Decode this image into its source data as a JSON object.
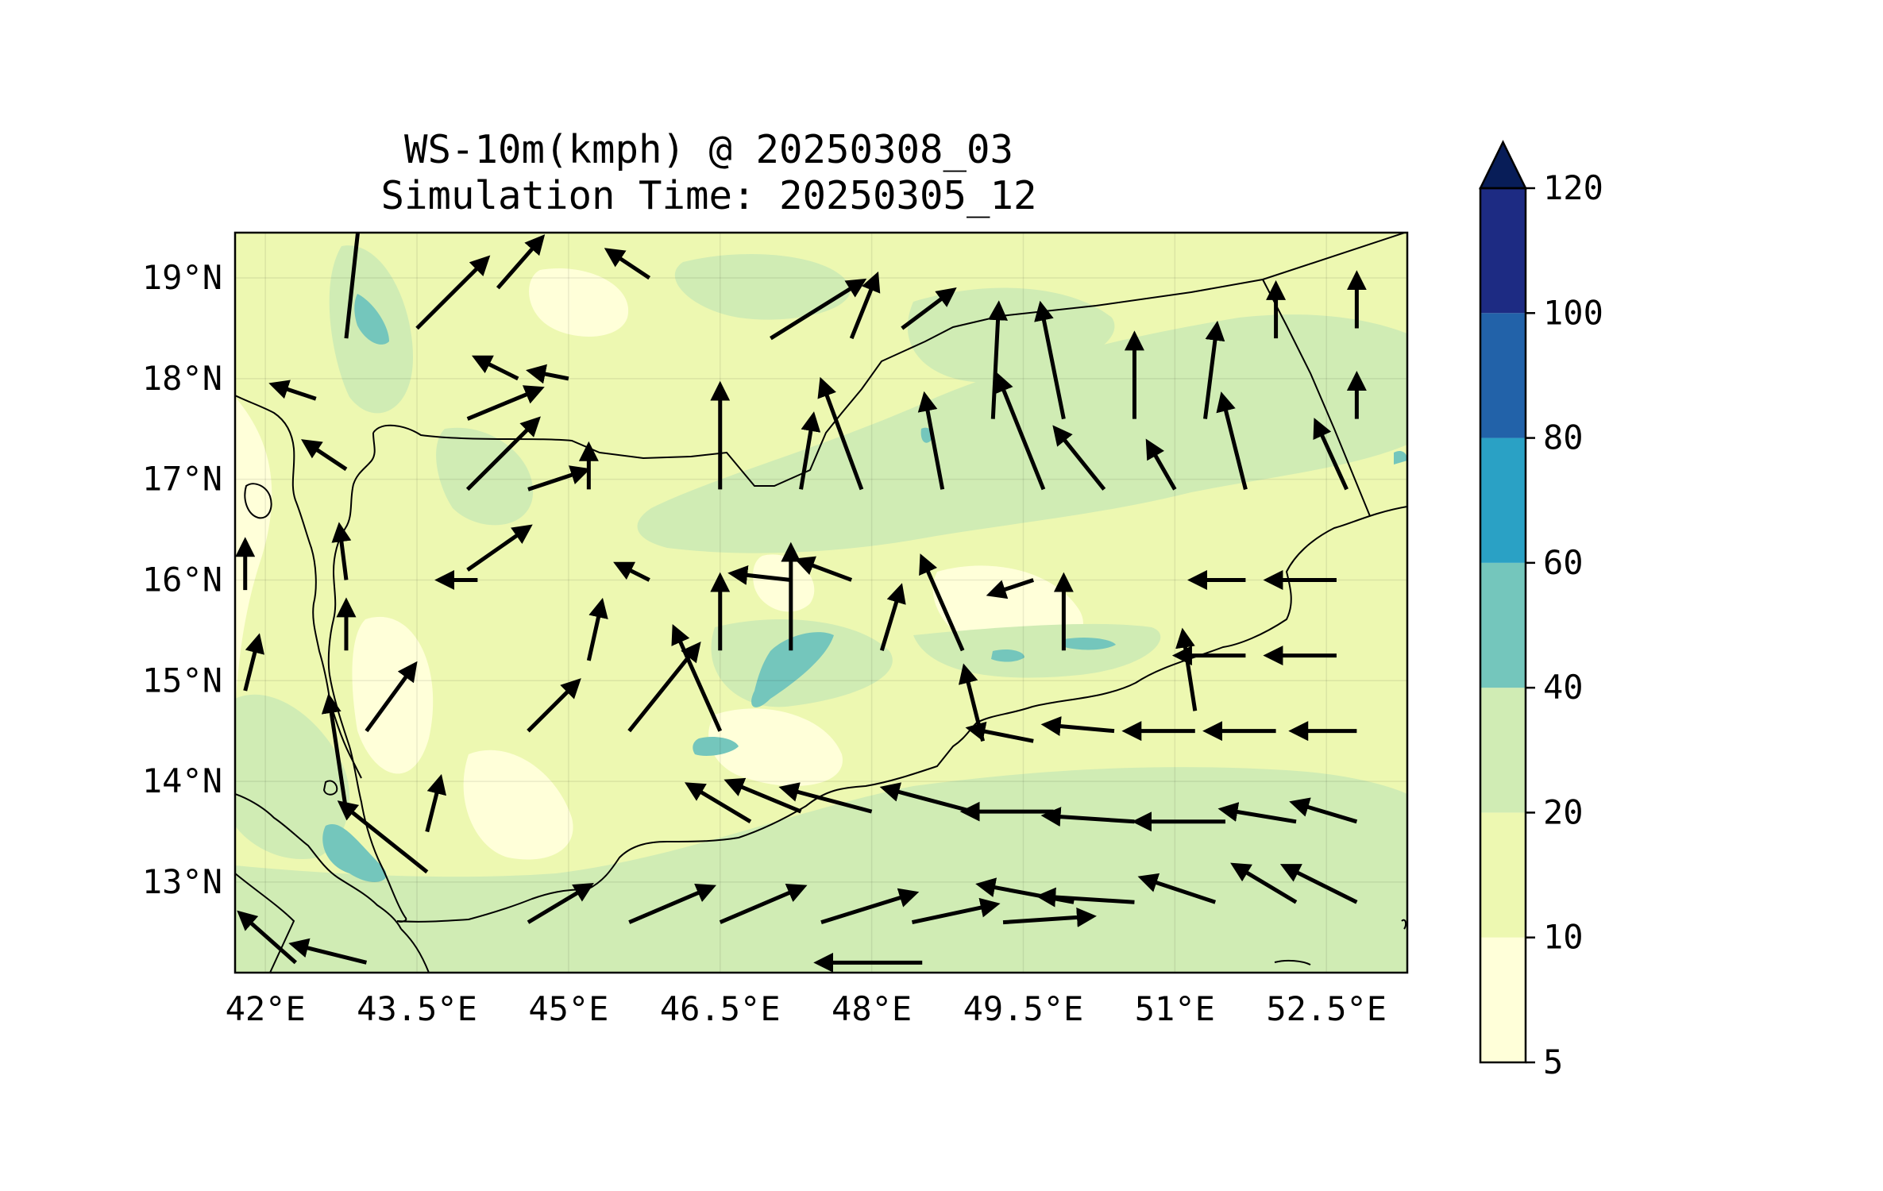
{
  "title": {
    "line1": "WS-10m(kmph) @ 20250308_03",
    "line2": "Simulation Time: 20250305_12"
  },
  "map": {
    "lon_range": [
      41.7,
      53.3
    ],
    "lat_range": [
      12.1,
      19.45
    ],
    "lon_ticks": [
      {
        "value": 42.0,
        "label": "42°E"
      },
      {
        "value": 43.5,
        "label": "43.5°E"
      },
      {
        "value": 45.0,
        "label": "45°E"
      },
      {
        "value": 46.5,
        "label": "46.5°E"
      },
      {
        "value": 48.0,
        "label": "48°E"
      },
      {
        "value": 49.5,
        "label": "49.5°E"
      },
      {
        "value": 51.0,
        "label": "51°E"
      },
      {
        "value": 52.5,
        "label": "52.5°E"
      }
    ],
    "lat_ticks": [
      {
        "value": 19,
        "label": "19°N"
      },
      {
        "value": 18,
        "label": "18°N"
      },
      {
        "value": 17,
        "label": "17°N"
      },
      {
        "value": 16,
        "label": "16°N"
      },
      {
        "value": 15,
        "label": "15°N"
      },
      {
        "value": 14,
        "label": "14°N"
      },
      {
        "value": 13,
        "label": "13°N"
      }
    ],
    "grid": true
  },
  "colorbar": {
    "levels": [
      {
        "label": "5",
        "color": "#ffffd9"
      },
      {
        "label": "10",
        "color": "#edf8b1"
      },
      {
        "label": "20",
        "color": "#d0ecb4"
      },
      {
        "label": "40",
        "color": "#74c6bc"
      },
      {
        "label": "60",
        "color": "#2aa1c5"
      },
      {
        "label": "80",
        "color": "#2262a9"
      },
      {
        "label": "100",
        "color": "#1d2b83"
      },
      {
        "label": "120",
        "color": "#081d58"
      }
    ],
    "extend": "max"
  },
  "wind_arrows": [
    [
      42.8,
      18.4,
      0.12,
      1.1
    ],
    [
      43.5,
      18.5,
      0.6,
      0.6
    ],
    [
      44.3,
      18.9,
      0.35,
      0.4
    ],
    [
      45.8,
      19.0,
      -0.3,
      0.2
    ],
    [
      47.0,
      18.4,
      0.8,
      0.5
    ],
    [
      47.8,
      18.4,
      0.2,
      0.5
    ],
    [
      48.3,
      18.5,
      0.4,
      0.3
    ],
    [
      49.2,
      17.6,
      0.05,
      1.0
    ],
    [
      49.9,
      17.6,
      -0.2,
      1.0
    ],
    [
      50.6,
      17.6,
      0.0,
      0.7
    ],
    [
      51.3,
      17.6,
      0.1,
      0.8
    ],
    [
      52.0,
      18.4,
      0.0,
      0.4
    ],
    [
      52.8,
      18.5,
      0.0,
      0.4
    ],
    [
      52.8,
      17.6,
      0.0,
      0.3
    ],
    [
      44.0,
      17.6,
      0.6,
      0.25
    ],
    [
      44.0,
      16.9,
      0.6,
      0.6
    ],
    [
      44.6,
      16.9,
      0.45,
      0.15
    ],
    [
      45.2,
      16.9,
      0.0,
      0.3
    ],
    [
      46.5,
      16.9,
      0.0,
      0.9
    ],
    [
      47.3,
      16.9,
      0.1,
      0.6
    ],
    [
      47.9,
      16.9,
      -0.35,
      0.95
    ],
    [
      48.7,
      16.9,
      -0.15,
      0.8
    ],
    [
      49.7,
      16.9,
      -0.4,
      1.0
    ],
    [
      50.3,
      16.9,
      -0.4,
      0.5
    ],
    [
      51.0,
      16.9,
      -0.2,
      0.35
    ],
    [
      51.7,
      16.9,
      -0.2,
      0.8
    ],
    [
      52.7,
      16.9,
      -0.25,
      0.55
    ],
    [
      44.0,
      16.1,
      0.5,
      0.35
    ],
    [
      46.5,
      15.3,
      0.0,
      0.6
    ],
    [
      47.2,
      15.3,
      0.0,
      0.9
    ],
    [
      48.1,
      15.3,
      0.15,
      0.5
    ],
    [
      48.9,
      15.3,
      -0.35,
      0.8
    ],
    [
      49.9,
      15.3,
      0.0,
      0.6
    ],
    [
      51.7,
      16.0,
      -0.4,
      0.0
    ],
    [
      52.6,
      16.0,
      -0.55,
      0.0
    ],
    [
      52.6,
      15.25,
      -0.55,
      0.0
    ],
    [
      51.7,
      15.25,
      -0.55,
      0.0
    ],
    [
      45.6,
      14.5,
      0.6,
      0.75
    ],
    [
      46.5,
      14.5,
      -0.4,
      0.9
    ],
    [
      44.6,
      14.5,
      0.4,
      0.4
    ],
    [
      42.8,
      13.7,
      -0.15,
      1.0
    ],
    [
      43.0,
      14.5,
      0.4,
      0.55
    ],
    [
      43.6,
      13.1,
      -0.75,
      0.6
    ],
    [
      43.6,
      13.5,
      0.1,
      0.4
    ],
    [
      44.6,
      12.6,
      0.5,
      0.3
    ],
    [
      45.6,
      12.6,
      0.7,
      0.3
    ],
    [
      46.5,
      12.6,
      0.7,
      0.3
    ],
    [
      47.5,
      12.6,
      0.8,
      0.25
    ],
    [
      48.4,
      12.6,
      0.7,
      0.15
    ],
    [
      49.3,
      12.6,
      0.75,
      0.05
    ],
    [
      50.0,
      12.8,
      -0.8,
      0.15
    ],
    [
      50.6,
      12.8,
      -0.8,
      0.05
    ],
    [
      51.4,
      12.8,
      -0.6,
      0.2
    ],
    [
      52.2,
      12.8,
      -0.5,
      0.3
    ],
    [
      52.8,
      12.8,
      -0.6,
      0.3
    ],
    [
      49.1,
      14.4,
      -0.15,
      0.6
    ],
    [
      49.0,
      13.7,
      -0.75,
      0.2
    ],
    [
      49.8,
      13.7,
      -0.75,
      0.0
    ],
    [
      50.6,
      13.6,
      -0.75,
      0.05
    ],
    [
      51.5,
      13.6,
      -0.75,
      0.0
    ],
    [
      52.2,
      13.6,
      -0.6,
      0.1
    ],
    [
      52.8,
      13.6,
      -0.5,
      0.15
    ],
    [
      48.0,
      13.7,
      -0.75,
      0.2
    ],
    [
      47.3,
      13.7,
      -0.6,
      0.25
    ],
    [
      46.8,
      13.6,
      -0.5,
      0.3
    ],
    [
      49.6,
      14.4,
      -0.5,
      0.1
    ],
    [
      50.4,
      14.5,
      -0.55,
      0.05
    ],
    [
      51.2,
      14.5,
      -0.55,
      0.0
    ],
    [
      52.0,
      14.5,
      -0.55,
      0.0
    ],
    [
      52.8,
      14.5,
      -0.5,
      0.0
    ],
    [
      51.2,
      14.7,
      -0.1,
      0.65
    ],
    [
      42.3,
      12.2,
      -0.45,
      0.4
    ],
    [
      43.0,
      12.2,
      -0.6,
      0.15
    ],
    [
      48.5,
      12.2,
      -0.9,
      0.0
    ],
    [
      44.5,
      18.0,
      -0.3,
      0.15
    ],
    [
      42.5,
      17.8,
      -0.3,
      0.1
    ],
    [
      45.0,
      18.0,
      -0.25,
      0.05
    ],
    [
      42.8,
      17.1,
      -0.3,
      0.2
    ],
    [
      42.8,
      16.0,
      -0.05,
      0.4
    ],
    [
      42.8,
      15.3,
      0.0,
      0.35
    ],
    [
      41.8,
      14.9,
      0.1,
      0.4
    ],
    [
      41.8,
      15.9,
      0.0,
      0.35
    ],
    [
      44.1,
      16.0,
      -0.25,
      0.0
    ],
    [
      45.2,
      15.2,
      0.1,
      0.45
    ],
    [
      45.8,
      16.0,
      -0.2,
      0.1
    ],
    [
      47.2,
      16.0,
      -0.45,
      0.05
    ],
    [
      47.8,
      16.0,
      -0.4,
      0.15
    ],
    [
      49.6,
      16.0,
      -0.3,
      -0.1
    ]
  ]
}
